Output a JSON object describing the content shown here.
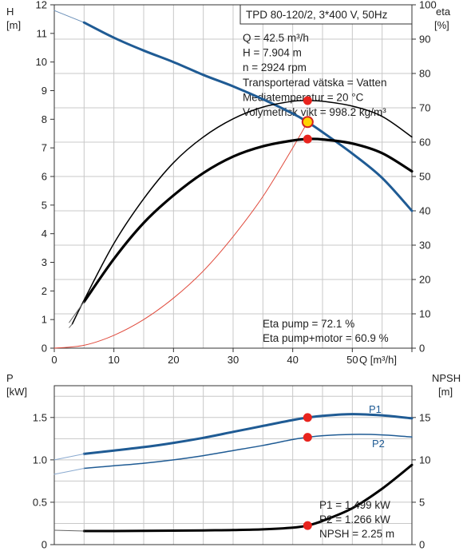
{
  "chart_data": [
    {
      "type": "line",
      "title": "TPD 80-120/2, 3*400 V, 50Hz",
      "xlabel": "Q [m³/h]",
      "ylabel_left": "H [m]",
      "ylabel_left_name": "H",
      "ylabel_left_unit": "[m]",
      "ylabel_right": "eta [%]",
      "ylabel_right_name": "eta",
      "ylabel_right_unit": "[%]",
      "xlim": [
        0,
        60
      ],
      "ylim_left": [
        0,
        12
      ],
      "ylim_right": [
        0,
        100
      ],
      "x_ticks": [
        "0",
        "10",
        "20",
        "30",
        "40",
        "50"
      ],
      "y_left_ticks": [
        "0",
        "1",
        "2",
        "3",
        "4",
        "5",
        "6",
        "7",
        "8",
        "9",
        "10",
        "11",
        "12"
      ],
      "y_right_ticks": [
        "0",
        "10",
        "20",
        "30",
        "40",
        "50",
        "60",
        "70",
        "80",
        "90",
        "100"
      ],
      "grid": true,
      "info_lines": [
        "Q = 42.5 m³/h",
        "H = 7.904 m",
        "n = 2924 rpm",
        "Transporterad vätska = Vatten",
        "Mediatemperatur = 20 °C",
        "Volymetrisk vikt = 998.2 kg/m³"
      ],
      "annotations": [
        "Eta pump = 72.1 %",
        "Eta pump+motor = 60.9 %"
      ],
      "series": [
        {
          "role": "head-curve-extension",
          "axis": "left",
          "color": "#6a8fb8",
          "x": [
            0,
            5
          ],
          "y": [
            11.8,
            11.38
          ]
        },
        {
          "role": "head-curve",
          "axis": "left",
          "color": "#1f5b94",
          "x": [
            5,
            10,
            15,
            20,
            25,
            30,
            35,
            40,
            42.5,
            45,
            50,
            55,
            60
          ],
          "y": [
            11.38,
            10.85,
            10.4,
            10.0,
            9.55,
            9.15,
            8.7,
            8.2,
            7.9,
            7.55,
            6.8,
            5.95,
            4.8
          ]
        },
        {
          "role": "system-curve",
          "axis": "left",
          "color": "#e04a3c",
          "x": [
            0,
            5,
            10,
            15,
            20,
            25,
            30,
            35,
            40,
            42.5
          ],
          "y": [
            0,
            0.1,
            0.45,
            1.0,
            1.75,
            2.7,
            3.9,
            5.3,
            7.0,
            7.904
          ]
        },
        {
          "role": "eta-pump",
          "axis": "right",
          "color": "#000000",
          "x": [
            3,
            5,
            10,
            15,
            20,
            25,
            30,
            35,
            40,
            42.5,
            45,
            50,
            55,
            60
          ],
          "y": [
            7,
            14,
            30.5,
            43.5,
            54,
            61.5,
            66.8,
            70.2,
            71.9,
            72.1,
            71.9,
            70.5,
            67.5,
            61.5
          ]
        },
        {
          "role": "eta-pump-motor",
          "axis": "right",
          "color": "#000000",
          "x": [
            5,
            10,
            15,
            20,
            25,
            30,
            35,
            40,
            42.5,
            45,
            50,
            55,
            60
          ],
          "y": [
            13.5,
            26,
            36.5,
            44.5,
            51,
            55.8,
            58.8,
            60.5,
            60.9,
            60.8,
            59.6,
            56.8,
            51.5
          ]
        },
        {
          "role": "eta-pump-extension",
          "axis": "right",
          "color": "#666666",
          "x": [
            2.5,
            3
          ],
          "y": [
            6,
            7
          ]
        },
        {
          "role": "eta-pump-motor-extension",
          "axis": "right",
          "color": "#666666",
          "x": [
            2.5,
            5
          ],
          "y": [
            7.5,
            13.5
          ]
        }
      ],
      "operating_points": [
        {
          "x": 42.5,
          "y": 7.904,
          "axis": "left",
          "style": "highlight"
        },
        {
          "x": 42.5,
          "y": 72.1,
          "axis": "right",
          "style": "red"
        },
        {
          "x": 42.5,
          "y": 60.9,
          "axis": "right",
          "style": "red"
        }
      ]
    },
    {
      "type": "line",
      "ylabel_left": "P [kW]",
      "ylabel_left_name": "P",
      "ylabel_left_unit": "[kW]",
      "ylabel_right": "NPSH [m]",
      "ylabel_right_name": "NPSH",
      "ylabel_right_unit": "[m]",
      "xlim": [
        0,
        60
      ],
      "ylim_left": [
        0,
        1.875
      ],
      "ylim_right": [
        0,
        18.75
      ],
      "y_left_ticks": [
        "0",
        "0.5",
        "1.0",
        "1.5"
      ],
      "y_right_ticks": [
        "0",
        "5",
        "10",
        "15"
      ],
      "grid": true,
      "curve_labels": [
        "P1",
        "P2"
      ],
      "annotations": [
        "P1 = 1.499 kW",
        "P2 = 1.266 kW",
        "NPSH = 2.25 m"
      ],
      "series": [
        {
          "name": "P1",
          "role": "p1-curve",
          "axis": "left",
          "color": "#1f5b94",
          "x": [
            5,
            10,
            15,
            20,
            25,
            30,
            35,
            40,
            42.5,
            45,
            50,
            55,
            60
          ],
          "y": [
            1.07,
            1.11,
            1.15,
            1.2,
            1.26,
            1.33,
            1.4,
            1.47,
            1.499,
            1.52,
            1.54,
            1.525,
            1.49
          ]
        },
        {
          "name": "P2",
          "role": "p2-curve",
          "axis": "left",
          "color": "#1f5b94",
          "x": [
            5,
            10,
            15,
            20,
            25,
            30,
            35,
            40,
            42.5,
            45,
            50,
            55,
            60
          ],
          "y": [
            0.9,
            0.93,
            0.96,
            1.0,
            1.05,
            1.11,
            1.17,
            1.24,
            1.266,
            1.285,
            1.3,
            1.295,
            1.27
          ]
        },
        {
          "role": "npsh-curve",
          "axis": "right",
          "color": "#000000",
          "x": [
            5,
            10,
            15,
            20,
            25,
            30,
            35,
            40,
            42.5,
            45,
            50,
            55,
            60
          ],
          "y": [
            1.6,
            1.6,
            1.62,
            1.65,
            1.68,
            1.72,
            1.8,
            2.0,
            2.25,
            2.8,
            4.3,
            6.6,
            9.4
          ]
        },
        {
          "role": "p1-extension",
          "axis": "left",
          "color": "#8aaad0",
          "x": [
            0,
            5
          ],
          "y": [
            1.0,
            1.07
          ]
        },
        {
          "role": "p2-extension",
          "axis": "left",
          "color": "#8aaad0",
          "x": [
            0,
            5
          ],
          "y": [
            0.83,
            0.9
          ]
        },
        {
          "role": "npsh-extension",
          "axis": "right",
          "color": "#666666",
          "x": [
            0,
            5
          ],
          "y": [
            1.7,
            1.6
          ]
        }
      ],
      "operating_points": [
        {
          "x": 42.5,
          "y": 1.499,
          "axis": "left",
          "style": "red"
        },
        {
          "x": 42.5,
          "y": 1.266,
          "axis": "left",
          "style": "red"
        },
        {
          "x": 42.5,
          "y": 2.25,
          "axis": "right",
          "style": "red"
        }
      ]
    }
  ]
}
